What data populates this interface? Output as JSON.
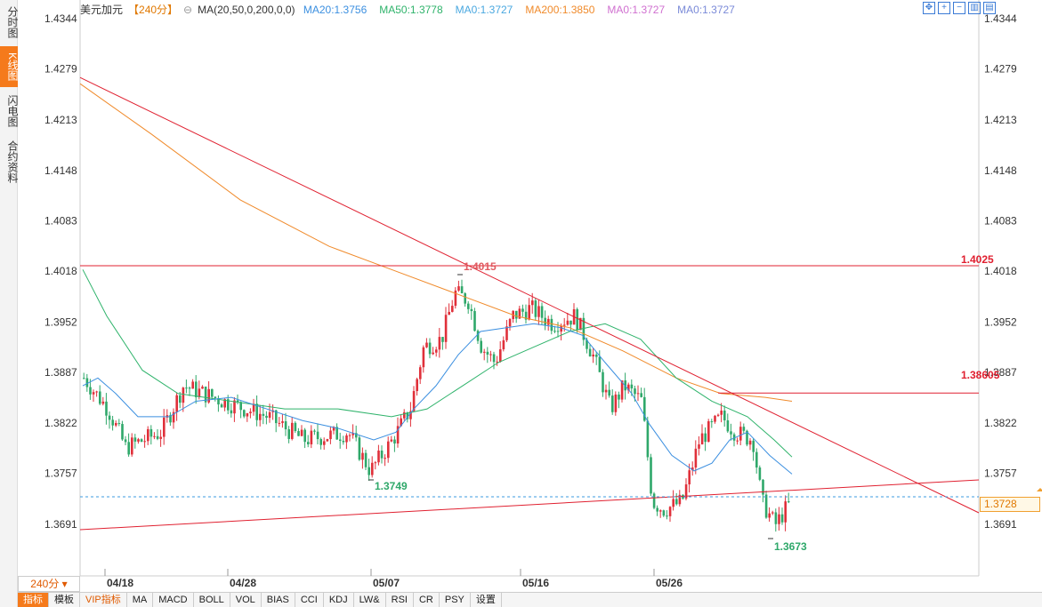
{
  "left_tabs": [
    "分时图",
    "K线图",
    "闪电图",
    "合约资料"
  ],
  "active_left_tab": "K线图",
  "header": {
    "symbol": "美元加元",
    "period": "【240分】",
    "indicator_name": "MA(20,50,0,200,0,0)",
    "ma_values": [
      {
        "label": "MA20:1.3756",
        "color": "#3b8fe0"
      },
      {
        "label": "MA50:1.3778",
        "color": "#2fb36b"
      },
      {
        "label": "MA0:1.3727",
        "color": "#4aa8e0"
      },
      {
        "label": "MA200:1.3850",
        "color": "#f08a2a"
      },
      {
        "label": "MA0:1.3727",
        "color": "#d070d0"
      },
      {
        "label": "MA0:1.3727",
        "color": "#7a8ad8"
      }
    ]
  },
  "toolbar_icons": [
    "move-icon",
    "zoom-in-icon",
    "zoom-out-icon",
    "chart-type-icon",
    "settings-icon"
  ],
  "price_axis": [
    "1.4344",
    "1.4279",
    "1.4213",
    "1.4148",
    "1.4083",
    "1.4018",
    "1.3952",
    "1.3887",
    "1.3822",
    "1.3757",
    "1.3691"
  ],
  "time_axis": [
    "04/18",
    "04/28",
    "05/07",
    "05/16",
    "05/26"
  ],
  "annotations": {
    "high_label": "1.4015",
    "low_label_1": "1.3749",
    "low_label_2": "1.3673",
    "resistance_1": "1.4025",
    "resistance_2": "1.38605"
  },
  "current_price": "1.3728",
  "period_badge": "240分",
  "bottom_tabs": [
    "指标",
    "模板",
    "VIP指标",
    "MA",
    "MACD",
    "BOLL",
    "VOL",
    "BIAS",
    "CCI",
    "KDJ",
    "LW&",
    "RSI",
    "CR",
    "PSY",
    "设置"
  ],
  "active_bottom_tab": "指标",
  "colors": {
    "up": "#e0303a",
    "down": "#2fa86a",
    "trend": "#e02030",
    "accent": "#f57a1b"
  }
}
